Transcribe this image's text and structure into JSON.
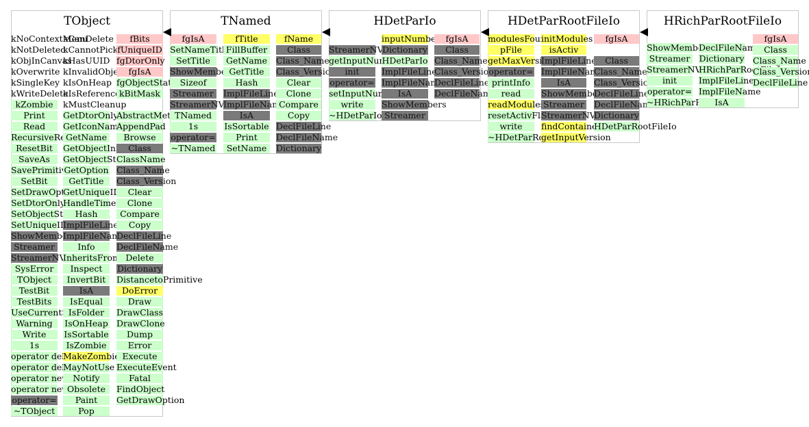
{
  "colors": {
    "public": "#ccffcc",
    "protected": "#7a7a7a",
    "data_private": "#ffc8c8",
    "data_public": "#ffff66"
  },
  "classes": [
    {
      "name": "TObject",
      "columns": [
        [
          {
            "t": "kNoContextMenu",
            "c": "w"
          },
          {
            "t": "kNotDeleted",
            "c": "w"
          },
          {
            "t": "kObjInCanvas",
            "c": "w"
          },
          {
            "t": "kOverwrite",
            "c": "w"
          },
          {
            "t": "kSingleKey",
            "c": "w"
          },
          {
            "t": "kWriteDelete",
            "c": "w"
          },
          {
            "t": "kZombie",
            "c": "g"
          },
          {
            "t": "Print",
            "c": "g"
          },
          {
            "t": "Read",
            "c": "g"
          },
          {
            "t": "RecursiveRemove",
            "c": "g"
          },
          {
            "t": "ResetBit",
            "c": "g"
          },
          {
            "t": "SaveAs",
            "c": "g"
          },
          {
            "t": "SavePrimitive",
            "c": "g"
          },
          {
            "t": "SetBit",
            "c": "g"
          },
          {
            "t": "SetDrawOption",
            "c": "g"
          },
          {
            "t": "SetDtorOnly",
            "c": "g"
          },
          {
            "t": "SetObjectStat",
            "c": "g"
          },
          {
            "t": "SetUniqueID",
            "c": "g"
          },
          {
            "t": "ShowMembers",
            "c": "d"
          },
          {
            "t": "Streamer",
            "c": "d"
          },
          {
            "t": "StreamerNVirtual",
            "c": "d"
          },
          {
            "t": "SysError",
            "c": "g"
          },
          {
            "t": "TObject",
            "c": "g"
          },
          {
            "t": "TestBit",
            "c": "g"
          },
          {
            "t": "TestBits",
            "c": "g"
          },
          {
            "t": "UseCurrentStyle",
            "c": "g"
          },
          {
            "t": "Warning",
            "c": "g"
          },
          {
            "t": "Write",
            "c": "g"
          },
          {
            "t": "1s",
            "c": "g"
          },
          {
            "t": "operator delete",
            "c": "g"
          },
          {
            "t": "operator delete[]",
            "c": "g"
          },
          {
            "t": "operator new",
            "c": "g"
          },
          {
            "t": "operator new[]",
            "c": "g"
          },
          {
            "t": "operator=",
            "c": "d"
          },
          {
            "t": "~TObject",
            "c": "g"
          }
        ],
        [
          {
            "t": "kCanDelete",
            "c": "w"
          },
          {
            "t": "kCannotPick",
            "c": "w"
          },
          {
            "t": "kHasUUID",
            "c": "w"
          },
          {
            "t": "kInvalidObject",
            "c": "w"
          },
          {
            "t": "kIsOnHeap",
            "c": "w"
          },
          {
            "t": "kIsReferenced",
            "c": "w"
          },
          {
            "t": "kMustCleanup",
            "c": "w"
          },
          {
            "t": "GetDtorOnly",
            "c": "g"
          },
          {
            "t": "GetIconName",
            "c": "g"
          },
          {
            "t": "GetName",
            "c": "g"
          },
          {
            "t": "GetObjectInfo",
            "c": "g"
          },
          {
            "t": "GetObjectStat",
            "c": "g"
          },
          {
            "t": "GetOption",
            "c": "g"
          },
          {
            "t": "GetTitle",
            "c": "g"
          },
          {
            "t": "GetUniqueID",
            "c": "g"
          },
          {
            "t": "HandleTimer",
            "c": "g"
          },
          {
            "t": "Hash",
            "c": "g"
          },
          {
            "t": "ImplFileLine",
            "c": "d"
          },
          {
            "t": "ImplFileName",
            "c": "d"
          },
          {
            "t": "Info",
            "c": "g"
          },
          {
            "t": "InheritsFrom",
            "c": "g"
          },
          {
            "t": "Inspect",
            "c": "g"
          },
          {
            "t": "InvertBit",
            "c": "g"
          },
          {
            "t": "IsA",
            "c": "d"
          },
          {
            "t": "IsEqual",
            "c": "g"
          },
          {
            "t": "IsFolder",
            "c": "g"
          },
          {
            "t": "IsOnHeap",
            "c": "g"
          },
          {
            "t": "IsSortable",
            "c": "g"
          },
          {
            "t": "IsZombie",
            "c": "g"
          },
          {
            "t": "MakeZombie",
            "c": "y"
          },
          {
            "t": "MayNotUse",
            "c": "g"
          },
          {
            "t": "Notify",
            "c": "g"
          },
          {
            "t": "Obsolete",
            "c": "g"
          },
          {
            "t": "Paint",
            "c": "g"
          },
          {
            "t": "Pop",
            "c": "g"
          }
        ],
        [
          {
            "t": "fBits",
            "c": "p"
          },
          {
            "t": "fUniqueID",
            "c": "p"
          },
          {
            "t": "fgDtorOnly",
            "c": "p"
          },
          {
            "t": "fgIsA",
            "c": "p"
          },
          {
            "t": "fgObjectStat",
            "c": "g"
          },
          {
            "t": "kBitMask",
            "c": "g"
          },
          {
            "t": "",
            "c": "w"
          },
          {
            "t": "AbstractMethod",
            "c": "g"
          },
          {
            "t": "AppendPad",
            "c": "g"
          },
          {
            "t": "Browse",
            "c": "g"
          },
          {
            "t": "Class",
            "c": "d"
          },
          {
            "t": "ClassName",
            "c": "g"
          },
          {
            "t": "Class_Name",
            "c": "d"
          },
          {
            "t": "Class_Version",
            "c": "d"
          },
          {
            "t": "Clear",
            "c": "g"
          },
          {
            "t": "Clone",
            "c": "g"
          },
          {
            "t": "Compare",
            "c": "g"
          },
          {
            "t": "Copy",
            "c": "g"
          },
          {
            "t": "DeclFileLine",
            "c": "d"
          },
          {
            "t": "DeclFileName",
            "c": "d"
          },
          {
            "t": "Delete",
            "c": "g"
          },
          {
            "t": "Dictionary",
            "c": "d"
          },
          {
            "t": "DistancetoPrimitive",
            "c": "g"
          },
          {
            "t": "DoError",
            "c": "y"
          },
          {
            "t": "Draw",
            "c": "g"
          },
          {
            "t": "DrawClass",
            "c": "g"
          },
          {
            "t": "DrawClone",
            "c": "g"
          },
          {
            "t": "Dump",
            "c": "g"
          },
          {
            "t": "Error",
            "c": "g"
          },
          {
            "t": "Execute",
            "c": "g"
          },
          {
            "t": "ExecuteEvent",
            "c": "g"
          },
          {
            "t": "Fatal",
            "c": "g"
          },
          {
            "t": "FindObject",
            "c": "g"
          },
          {
            "t": "GetDrawOption",
            "c": "g"
          }
        ]
      ]
    },
    {
      "name": "TNamed",
      "columns": [
        [
          {
            "t": "fgIsA",
            "c": "p"
          },
          {
            "t": "SetNameTitle",
            "c": "g"
          },
          {
            "t": "SetTitle",
            "c": "g"
          },
          {
            "t": "ShowMembers",
            "c": "d"
          },
          {
            "t": "Sizeof",
            "c": "g"
          },
          {
            "t": "Streamer",
            "c": "d"
          },
          {
            "t": "StreamerNVirtual",
            "c": "d"
          },
          {
            "t": "TNamed",
            "c": "g"
          },
          {
            "t": "1s",
            "c": "g"
          },
          {
            "t": "operator=",
            "c": "d"
          },
          {
            "t": "~TNamed",
            "c": "g"
          }
        ],
        [
          {
            "t": "fTitle",
            "c": "y"
          },
          {
            "t": "FillBuffer",
            "c": "g"
          },
          {
            "t": "GetName",
            "c": "g"
          },
          {
            "t": "GetTitle",
            "c": "g"
          },
          {
            "t": "Hash",
            "c": "g"
          },
          {
            "t": "ImplFileLine",
            "c": "d"
          },
          {
            "t": "ImplFileName",
            "c": "d"
          },
          {
            "t": "IsA",
            "c": "d"
          },
          {
            "t": "IsSortable",
            "c": "g"
          },
          {
            "t": "Print",
            "c": "g"
          },
          {
            "t": "SetName",
            "c": "g"
          }
        ],
        [
          {
            "t": "fName",
            "c": "y"
          },
          {
            "t": "Class",
            "c": "d"
          },
          {
            "t": "Class_Name",
            "c": "d"
          },
          {
            "t": "Class_Version",
            "c": "d"
          },
          {
            "t": "Clear",
            "c": "g"
          },
          {
            "t": "Clone",
            "c": "g"
          },
          {
            "t": "Compare",
            "c": "g"
          },
          {
            "t": "Copy",
            "c": "g"
          },
          {
            "t": "DeclFileLine",
            "c": "d"
          },
          {
            "t": "DeclFileName",
            "c": "d"
          },
          {
            "t": "Dictionary",
            "c": "d"
          }
        ]
      ]
    },
    {
      "name": "HDetParIo",
      "columns": [
        [
          {
            "t": "",
            "c": "w"
          },
          {
            "t": "StreamerNVirtual",
            "c": "d"
          },
          {
            "t": "getInputNumber",
            "c": "g"
          },
          {
            "t": "init",
            "c": "d"
          },
          {
            "t": "operator=",
            "c": "d"
          },
          {
            "t": "setInputNumber",
            "c": "g"
          },
          {
            "t": "write",
            "c": "g"
          },
          {
            "t": "~HDetParIo",
            "c": "g"
          }
        ],
        [
          {
            "t": "inputNumber",
            "c": "y"
          },
          {
            "t": "Dictionary",
            "c": "d"
          },
          {
            "t": "HDetParIo",
            "c": "g"
          },
          {
            "t": "ImplFileLine",
            "c": "d"
          },
          {
            "t": "ImplFileName",
            "c": "d"
          },
          {
            "t": "IsA",
            "c": "d"
          },
          {
            "t": "ShowMembers",
            "c": "d"
          },
          {
            "t": "Streamer",
            "c": "d"
          }
        ],
        [
          {
            "t": "fgIsA",
            "c": "p"
          },
          {
            "t": "Class",
            "c": "d"
          },
          {
            "t": "Class_Name",
            "c": "d"
          },
          {
            "t": "Class_Version",
            "c": "d"
          },
          {
            "t": "DeclFileLine",
            "c": "d"
          },
          {
            "t": "DeclFileName",
            "c": "d"
          }
        ]
      ]
    },
    {
      "name": "HDetParRootFileIo",
      "columns": [
        [
          {
            "t": "modulesFound",
            "c": "y"
          },
          {
            "t": "pFile",
            "c": "y"
          },
          {
            "t": "getMaxVersion",
            "c": "y"
          },
          {
            "t": "operator=",
            "c": "d"
          },
          {
            "t": "printInfo",
            "c": "g"
          },
          {
            "t": "read",
            "c": "g"
          },
          {
            "t": "readModules",
            "c": "y"
          },
          {
            "t": "resetActivFlag",
            "c": "g"
          },
          {
            "t": "write",
            "c": "g"
          },
          {
            "t": "~HDetParRootFileIo",
            "c": "g"
          }
        ],
        [
          {
            "t": "initModules",
            "c": "y"
          },
          {
            "t": "isActiv",
            "c": "y"
          },
          {
            "t": "ImplFileLine",
            "c": "d"
          },
          {
            "t": "ImplFileName",
            "c": "d"
          },
          {
            "t": "IsA",
            "c": "d"
          },
          {
            "t": "ShowMembers",
            "c": "d"
          },
          {
            "t": "Streamer",
            "c": "d"
          },
          {
            "t": "StreamerNVirtual",
            "c": "d"
          },
          {
            "t": "findContainer",
            "c": "y"
          },
          {
            "t": "getInputVersion",
            "c": "y"
          }
        ],
        [
          {
            "t": "fgIsA",
            "c": "p"
          },
          {
            "t": "",
            "c": "w"
          },
          {
            "t": "Class",
            "c": "d"
          },
          {
            "t": "Class_Name",
            "c": "d"
          },
          {
            "t": "Class_Version",
            "c": "d"
          },
          {
            "t": "DeclFileLine",
            "c": "d"
          },
          {
            "t": "DeclFileName",
            "c": "d"
          },
          {
            "t": "Dictionary",
            "c": "d"
          },
          {
            "t": "HDetParRootFileIo",
            "c": "g"
          }
        ]
      ]
    },
    {
      "name": "HRichParRootFileIo",
      "columns": [
        [
          {
            "t": "ShowMembers",
            "c": "g"
          },
          {
            "t": "Streamer",
            "c": "g"
          },
          {
            "t": "StreamerNVirtual",
            "c": "g"
          },
          {
            "t": "init",
            "c": "g"
          },
          {
            "t": "operator=",
            "c": "g"
          },
          {
            "t": "~HRichParRootFileIo",
            "c": "g"
          }
        ],
        [
          {
            "t": "DeclFileName",
            "c": "g"
          },
          {
            "t": "Dictionary",
            "c": "g"
          },
          {
            "t": "HRichParRootFileIo",
            "c": "g"
          },
          {
            "t": "ImplFileLine",
            "c": "g"
          },
          {
            "t": "ImplFileName",
            "c": "g"
          },
          {
            "t": "IsA",
            "c": "g"
          }
        ],
        [
          {
            "t": "fgIsA",
            "c": "p"
          },
          {
            "t": "Class",
            "c": "g"
          },
          {
            "t": "Class_Name",
            "c": "g"
          },
          {
            "t": "Class_Version",
            "c": "g"
          },
          {
            "t": "DeclFileLine",
            "c": "g"
          }
        ]
      ]
    }
  ]
}
